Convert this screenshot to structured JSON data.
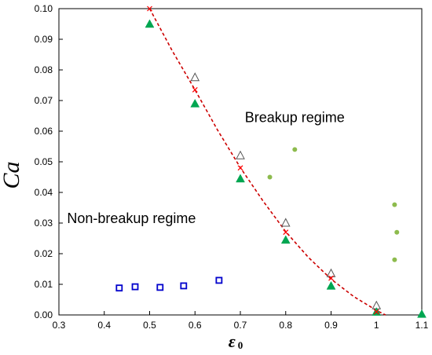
{
  "chart_data": {
    "type": "scatter",
    "ylabel": "Ca",
    "xlabel": {
      "symbol": "ε",
      "subscript": "0"
    },
    "xlim": [
      0.3,
      1.1
    ],
    "ylim": [
      0.0,
      0.1
    ],
    "xticks": [
      "0.3",
      "0.4",
      "0.5",
      "0.6",
      "0.7",
      "0.8",
      "0.9",
      "1",
      "1.1"
    ],
    "yticks": [
      "0.00",
      "0.01",
      "0.02",
      "0.03",
      "0.04",
      "0.05",
      "0.06",
      "0.07",
      "0.08",
      "0.09",
      "0.10"
    ],
    "grid": false,
    "annotations": [
      {
        "text": "Breakup regime",
        "x": 0.82,
        "y": 0.063
      },
      {
        "text": "Non-breakup regime",
        "x": 0.46,
        "y": 0.03
      }
    ],
    "series": [
      {
        "marker": "square-open",
        "color": "#0000cc",
        "x": [
          0.433,
          0.468,
          0.523,
          0.575,
          0.653
        ],
        "y": [
          0.0088,
          0.0092,
          0.009,
          0.0095,
          0.0113
        ]
      },
      {
        "marker": "triangle-open",
        "color": "#555555",
        "x": [
          0.6,
          0.7,
          0.8,
          0.9,
          1.0
        ],
        "y": [
          0.0775,
          0.052,
          0.03,
          0.0135,
          0.003
        ]
      },
      {
        "marker": "triangle-filled",
        "color": "#00a651",
        "x": [
          0.5,
          0.6,
          0.7,
          0.8,
          0.9,
          1.0,
          1.1
        ],
        "y": [
          0.095,
          0.069,
          0.0445,
          0.0245,
          0.0095,
          0.001,
          0.0003
        ]
      },
      {
        "marker": "x",
        "color": "#ff0000",
        "x": [
          0.5,
          0.6,
          0.7,
          0.8,
          0.9,
          1.0
        ],
        "y": [
          0.1,
          0.0735,
          0.048,
          0.027,
          0.012,
          0.001
        ]
      },
      {
        "marker": "circle-filled",
        "color": "#8dbb4d",
        "x": [
          0.765,
          0.82,
          1.04,
          1.045,
          1.04
        ],
        "y": [
          0.045,
          0.054,
          0.036,
          0.027,
          0.018
        ]
      },
      {
        "marker": "dashed-curve",
        "color": "#cc0000",
        "x": [
          0.5,
          0.55,
          0.6,
          0.65,
          0.7,
          0.75,
          0.8,
          0.85,
          0.9,
          0.95,
          1.0,
          1.02
        ],
        "y": [
          0.1,
          0.0862,
          0.0735,
          0.0603,
          0.0481,
          0.0372,
          0.0272,
          0.0188,
          0.0117,
          0.006,
          0.0015,
          0.0
        ]
      }
    ]
  }
}
